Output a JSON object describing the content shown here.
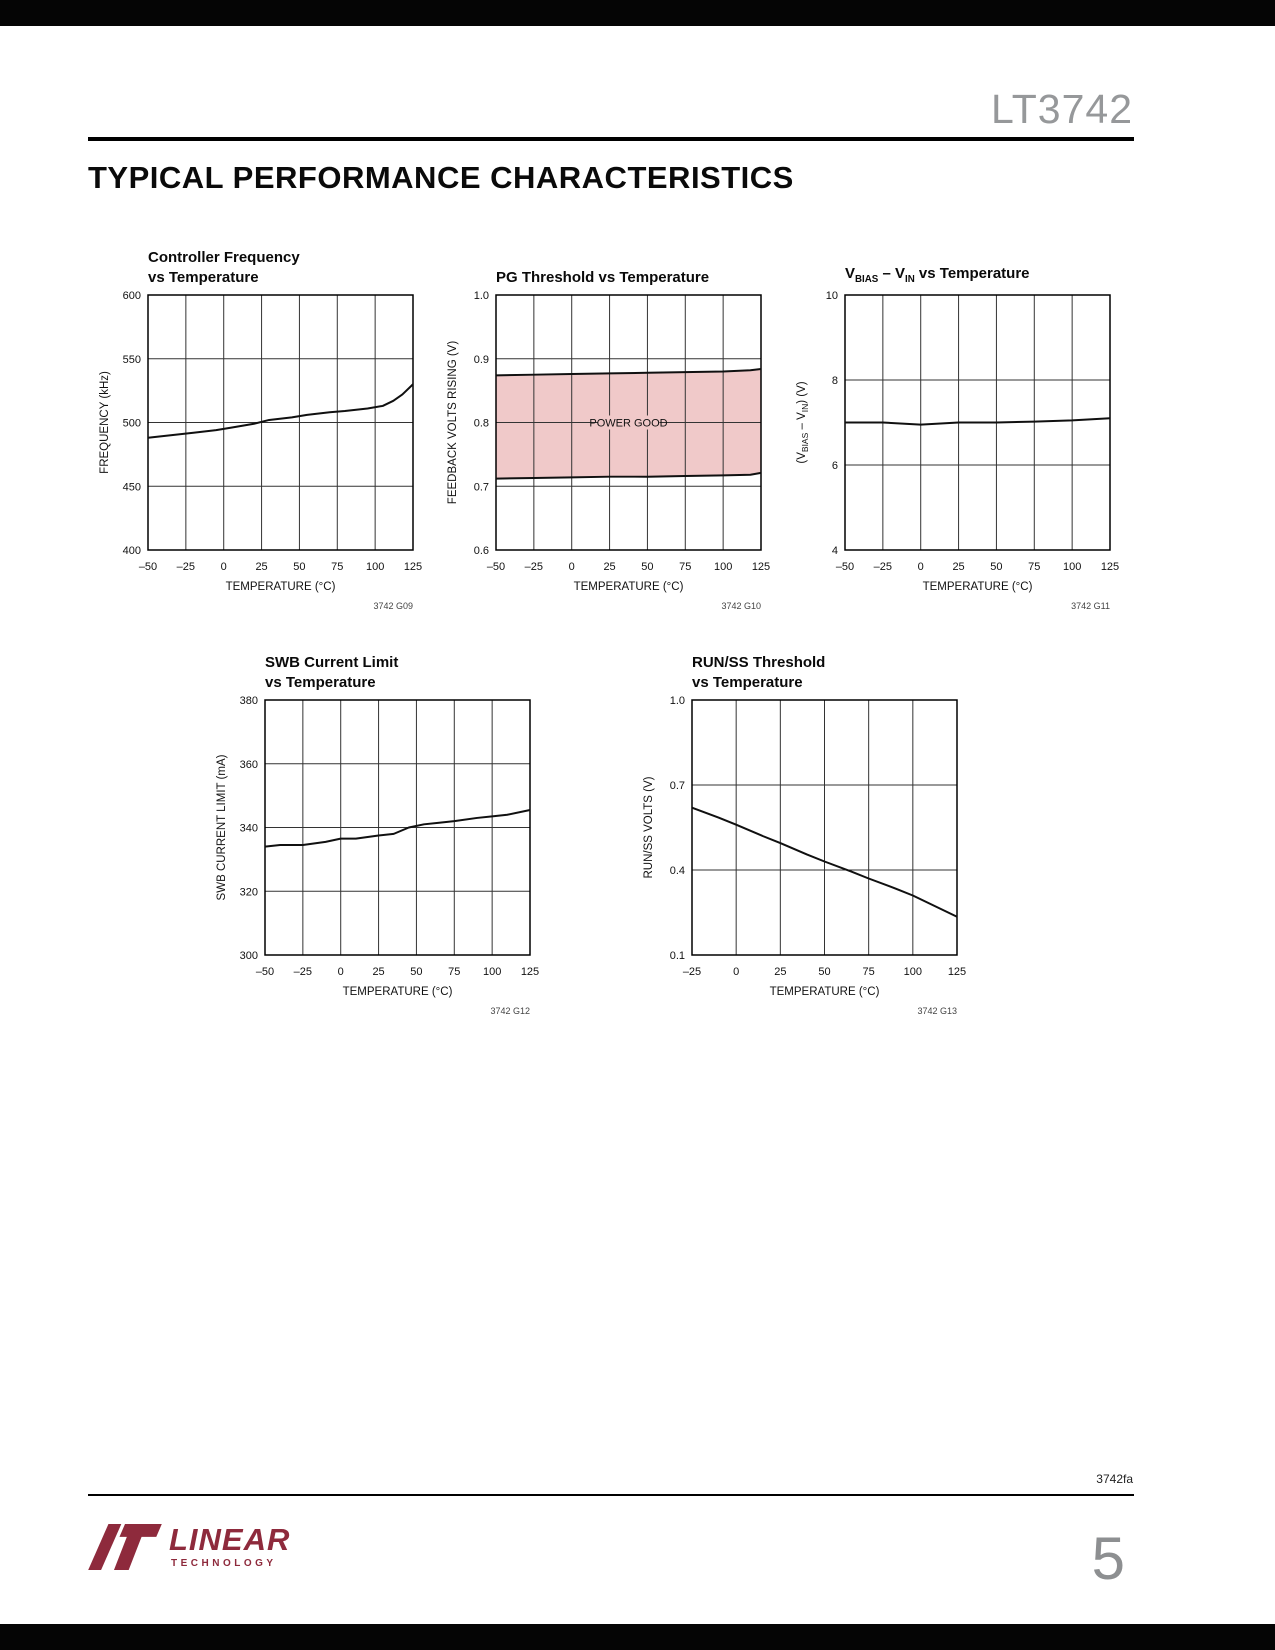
{
  "page": {
    "part_number": "LT3742",
    "section_title": "TYPICAL PERFORMANCE CHARACTERISTICS",
    "doc_code": "3742fa",
    "page_number": "5"
  },
  "logo": {
    "brand": "LINEAR",
    "sub_brand": "TECHNOLOGY"
  },
  "colors": {
    "band_pink": "#f0c9c9",
    "logo_maroon": "#8e2a3c",
    "header_gray": "#96989a",
    "page_number_gray": "#8d8f91",
    "bar_black": "#050505"
  },
  "chart_data": [
    {
      "index": 0,
      "id_label": "3742 G09",
      "type": "line",
      "grid": true,
      "title_lines": [
        "Controller Frequency",
        "vs Temperature"
      ],
      "xlabel": "TEMPERATURE (°C)",
      "ylabel": "FREQUENCY (kHz)",
      "x": {
        "min": -50,
        "max": 125,
        "ticks": [
          -50,
          -25,
          0,
          25,
          50,
          75,
          100,
          125
        ],
        "tick_labels": [
          "–50",
          "–25",
          "0",
          "25",
          "50",
          "75",
          "100",
          "125"
        ]
      },
      "y": {
        "min": 400,
        "max": 600,
        "ticks": [
          400,
          450,
          500,
          550,
          600
        ],
        "tick_labels": [
          "400",
          "450",
          "500",
          "550",
          "600"
        ]
      },
      "series": [
        {
          "name": "controller_frequency_khz",
          "x": [
            -50,
            -35,
            -20,
            -5,
            5,
            20,
            30,
            45,
            55,
            70,
            80,
            95,
            105,
            112,
            118,
            125
          ],
          "y": [
            488,
            490,
            492,
            494,
            496,
            499,
            502,
            504,
            506,
            508,
            509,
            511,
            513,
            517,
            522,
            530
          ]
        }
      ]
    },
    {
      "index": 1,
      "id_label": "3742 G10",
      "type": "line",
      "grid": true,
      "title_lines": [
        "PG Threshold vs Temperature"
      ],
      "xlabel": "TEMPERATURE (°C)",
      "ylabel": "FEEDBACK VOLTS RISING (V)",
      "x": {
        "min": -50,
        "max": 125,
        "ticks": [
          -50,
          -25,
          0,
          25,
          50,
          75,
          100,
          125
        ],
        "tick_labels": [
          "–50",
          "–25",
          "0",
          "25",
          "50",
          "75",
          "100",
          "125"
        ]
      },
      "y": {
        "min": 0.6,
        "max": 1.0,
        "ticks": [
          0.6,
          0.7,
          0.8,
          0.9,
          1.0
        ],
        "tick_labels": [
          "0.6",
          "0.7",
          "0.8",
          "0.9",
          "1.0"
        ]
      },
      "band": {
        "between": [
          0,
          1
        ],
        "fill": "#f0c9c9"
      },
      "annotation": {
        "text": "POWER GOOD",
        "x": 37.5,
        "y": 0.8
      },
      "series": [
        {
          "name": "pg_upper_threshold_v",
          "x": [
            -50,
            -25,
            0,
            25,
            50,
            75,
            100,
            118,
            125
          ],
          "y": [
            0.874,
            0.875,
            0.876,
            0.877,
            0.878,
            0.879,
            0.88,
            0.882,
            0.884
          ]
        },
        {
          "name": "pg_lower_threshold_v",
          "x": [
            -50,
            -25,
            0,
            25,
            50,
            75,
            100,
            118,
            125
          ],
          "y": [
            0.712,
            0.713,
            0.714,
            0.715,
            0.715,
            0.716,
            0.717,
            0.718,
            0.721
          ]
        }
      ]
    },
    {
      "index": 2,
      "id_label": "3742 G11",
      "type": "line",
      "grid": true,
      "title_lines": [
        "V~BIAS~ – V~IN~ vs Temperature"
      ],
      "xlabel": "TEMPERATURE (°C)",
      "ylabel": "(V~BIAS~ – V~IN~) (V)",
      "x": {
        "min": -50,
        "max": 125,
        "ticks": [
          -50,
          -25,
          0,
          25,
          50,
          75,
          100,
          125
        ],
        "tick_labels": [
          "–50",
          "–25",
          "0",
          "25",
          "50",
          "75",
          "100",
          "125"
        ]
      },
      "y": {
        "min": 4,
        "max": 10,
        "ticks": [
          4,
          6,
          8,
          10
        ],
        "tick_labels": [
          "4",
          "6",
          "8",
          "10"
        ]
      },
      "series": [
        {
          "name": "vbias_minus_vin_v",
          "x": [
            -50,
            -25,
            0,
            25,
            50,
            75,
            100,
            125
          ],
          "y": [
            7.0,
            7.0,
            6.95,
            7.0,
            7.0,
            7.02,
            7.05,
            7.1
          ]
        }
      ]
    },
    {
      "index": 3,
      "id_label": "3742 G12",
      "type": "line",
      "grid": true,
      "title_lines": [
        "SWB Current Limit",
        "vs Temperature"
      ],
      "xlabel": "TEMPERATURE (°C)",
      "ylabel": "SWB CURRENT LIMIT (mA)",
      "x": {
        "min": -50,
        "max": 125,
        "ticks": [
          -50,
          -25,
          0,
          25,
          50,
          75,
          100,
          125
        ],
        "tick_labels": [
          "–50",
          "–25",
          "0",
          "25",
          "50",
          "75",
          "100",
          "125"
        ]
      },
      "y": {
        "min": 300,
        "max": 380,
        "ticks": [
          300,
          320,
          340,
          360,
          380
        ],
        "tick_labels": [
          "300",
          "320",
          "340",
          "360",
          "380"
        ]
      },
      "series": [
        {
          "name": "swb_current_limit_ma",
          "x": [
            -50,
            -40,
            -25,
            -10,
            0,
            10,
            25,
            35,
            45,
            55,
            65,
            75,
            90,
            100,
            110,
            125
          ],
          "y": [
            334,
            334.5,
            334.5,
            335.5,
            336.5,
            336.5,
            337.5,
            338,
            340,
            341,
            341.5,
            342,
            343,
            343.5,
            344,
            345.5
          ]
        }
      ]
    },
    {
      "index": 4,
      "id_label": "3742 G13",
      "type": "line",
      "grid": true,
      "title_lines": [
        "RUN/SS Threshold",
        "vs Temperature"
      ],
      "xlabel": "TEMPERATURE (°C)",
      "ylabel": "RUN/SS VOLTS (V)",
      "x": {
        "min": -25,
        "max": 125,
        "ticks": [
          -25,
          0,
          25,
          50,
          75,
          100,
          125
        ],
        "tick_labels": [
          "–25",
          "0",
          "25",
          "50",
          "75",
          "100",
          "125"
        ]
      },
      "y": {
        "min": 0.1,
        "max": 1.0,
        "ticks": [
          0.1,
          0.4,
          0.7,
          1.0
        ],
        "tick_labels": [
          "0.1",
          "0.4",
          "0.7",
          "1.0"
        ]
      },
      "series": [
        {
          "name": "run_ss_threshold_v",
          "x": [
            -25,
            -10,
            0,
            15,
            25,
            40,
            50,
            65,
            75,
            90,
            100,
            115,
            125
          ],
          "y": [
            0.62,
            0.585,
            0.56,
            0.52,
            0.495,
            0.455,
            0.43,
            0.395,
            0.37,
            0.335,
            0.31,
            0.265,
            0.235
          ]
        }
      ]
    }
  ]
}
